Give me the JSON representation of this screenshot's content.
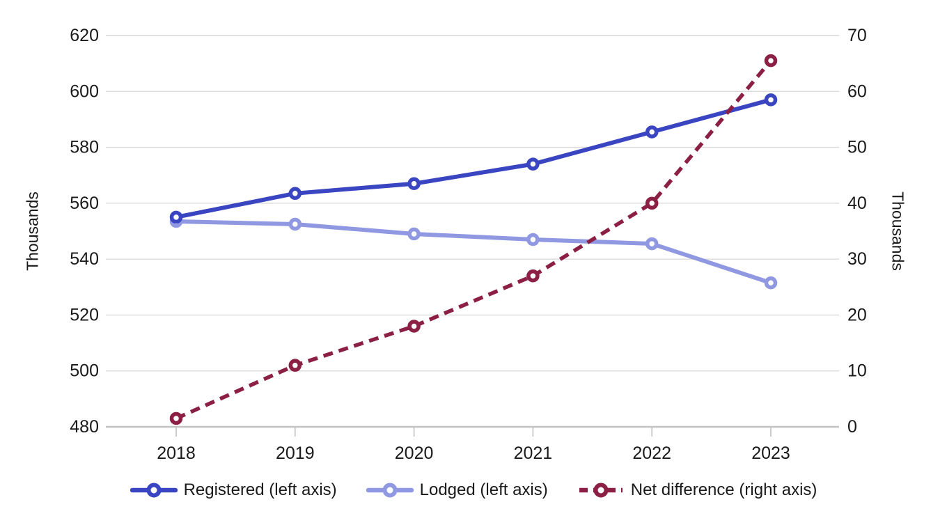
{
  "chart_data": {
    "type": "line",
    "x": [
      "2018",
      "2019",
      "2020",
      "2021",
      "2022",
      "2023"
    ],
    "series": [
      {
        "id": "registered",
        "name": "Registered (left axis)",
        "axis": "left",
        "style": "solid",
        "color": "#3a45c2",
        "values": [
          555,
          563.5,
          567,
          574,
          585.5,
          597
        ]
      },
      {
        "id": "lodged",
        "name": "Lodged (left axis)",
        "axis": "left",
        "style": "solid",
        "color": "#9098e2",
        "values": [
          553.5,
          552.5,
          549,
          547,
          545.5,
          531.5
        ]
      },
      {
        "id": "net-difference",
        "name": "Net difference (right axis)",
        "axis": "right",
        "style": "dashed",
        "color": "#8c2044",
        "values": [
          1.5,
          11,
          18,
          27,
          40,
          65.5
        ]
      }
    ],
    "left_axis": {
      "title": "Thousands",
      "min": 480,
      "max": 620,
      "step": 20,
      "ticks": [
        480,
        500,
        520,
        540,
        560,
        580,
        600,
        620
      ]
    },
    "right_axis": {
      "title": "Thousands",
      "min": 0,
      "max": 70,
      "step": 10,
      "ticks": [
        0,
        10,
        20,
        30,
        40,
        50,
        60,
        70
      ]
    },
    "grid": true,
    "legend_position": "bottom"
  },
  "colors": {
    "gridline": "#d9d9d9",
    "axis_line": "#c2c2c2",
    "tick_mark": "#c2c2c2",
    "text": "#1a1a1a",
    "background": "#ffffff"
  }
}
